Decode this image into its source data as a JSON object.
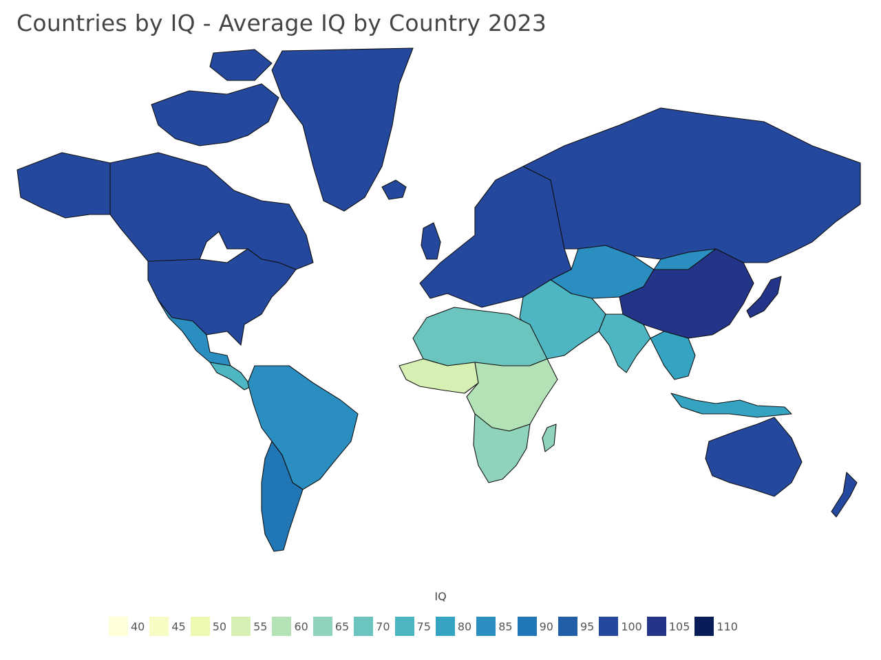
{
  "title": "Countries by IQ - Average IQ by Country 2023",
  "legend": {
    "title": "IQ",
    "items": [
      {
        "label": "40",
        "color": "#ffffd9"
      },
      {
        "label": "45",
        "color": "#f7fcc5"
      },
      {
        "label": "50",
        "color": "#edf8b1"
      },
      {
        "label": "55",
        "color": "#d6efb3"
      },
      {
        "label": "60",
        "color": "#b3e2b6"
      },
      {
        "label": "65",
        "color": "#8fd3bb"
      },
      {
        "label": "70",
        "color": "#6cc4bf"
      },
      {
        "label": "75",
        "color": "#4db6c2"
      },
      {
        "label": "80",
        "color": "#35a4c2"
      },
      {
        "label": "85",
        "color": "#2a8fc0"
      },
      {
        "label": "90",
        "color": "#2176b6"
      },
      {
        "label": "95",
        "color": "#225ea8"
      },
      {
        "label": "100",
        "color": "#23489d"
      },
      {
        "label": "105",
        "color": "#243489"
      },
      {
        "label": "110",
        "color": "#081d58"
      }
    ]
  },
  "regions": [
    {
      "name": "canada",
      "iq_color": "#23489d"
    },
    {
      "name": "greenland",
      "iq_color": "#23489d"
    },
    {
      "name": "usa",
      "iq_color": "#23489d"
    },
    {
      "name": "mexico",
      "iq_color": "#2a8fc0"
    },
    {
      "name": "central-america",
      "iq_color": "#4db6c2"
    },
    {
      "name": "south-america",
      "iq_color": "#2a8fc0"
    },
    {
      "name": "argentina-chile",
      "iq_color": "#2176b6"
    },
    {
      "name": "europe",
      "iq_color": "#23489d"
    },
    {
      "name": "russia",
      "iq_color": "#23489d"
    },
    {
      "name": "middle-east",
      "iq_color": "#4db6c2"
    },
    {
      "name": "north-africa",
      "iq_color": "#6cc4bf"
    },
    {
      "name": "west-africa",
      "iq_color": "#d6efb3"
    },
    {
      "name": "central-africa",
      "iq_color": "#b3e2b6"
    },
    {
      "name": "southern-africa",
      "iq_color": "#8fd3bb"
    },
    {
      "name": "india",
      "iq_color": "#4db6c2"
    },
    {
      "name": "central-asia",
      "iq_color": "#2a8fc0"
    },
    {
      "name": "china",
      "iq_color": "#243489"
    },
    {
      "name": "japan",
      "iq_color": "#243489"
    },
    {
      "name": "southeast-asia",
      "iq_color": "#35a4c2"
    },
    {
      "name": "indonesia",
      "iq_color": "#35a4c2"
    },
    {
      "name": "australia",
      "iq_color": "#23489d"
    },
    {
      "name": "new-zealand",
      "iq_color": "#23489d"
    }
  ]
}
